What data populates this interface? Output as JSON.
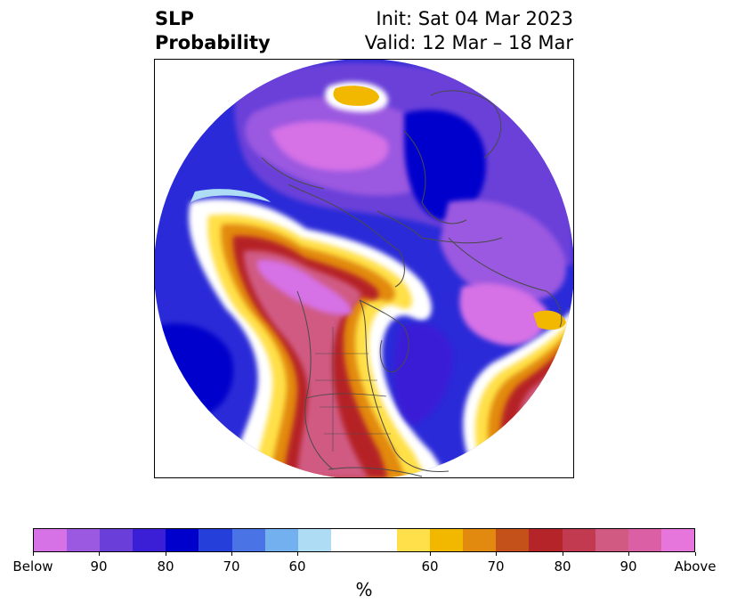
{
  "header": {
    "title_line1": "SLP",
    "title_line2": "Probability",
    "init_text": "Init: Sat 04 Mar 2023",
    "valid_text": "Valid: 12 Mar – 18 Mar"
  },
  "map": {
    "projection": "north-polar-stereographic",
    "colors": {
      "below_strong": "#d671e6",
      "below_mid": "#6a3fd9",
      "below_weak": "#0000cc",
      "below_light": "#aedcf5",
      "above_light": "#ffe04a",
      "above_mid": "#e28a10",
      "above_strong": "#b52428",
      "above_extreme": "#d05a96"
    }
  },
  "colorbar": {
    "colors": [
      "#d671e6",
      "#9b58e0",
      "#6a3fd9",
      "#3a1fd6",
      "#0000cc",
      "#2540da",
      "#4a74e6",
      "#72b0f0",
      "#aedcf5",
      "#ffffff",
      "#ffe04a",
      "#f2b800",
      "#e28a10",
      "#c4501a",
      "#b52428",
      "#c23a50",
      "#d05a82",
      "#db5fa4",
      "#e676dc"
    ],
    "tick_labels": [
      "Below",
      "90",
      "80",
      "70",
      "60",
      "60",
      "70",
      "80",
      "90",
      "Above"
    ],
    "unit_label": "%"
  }
}
